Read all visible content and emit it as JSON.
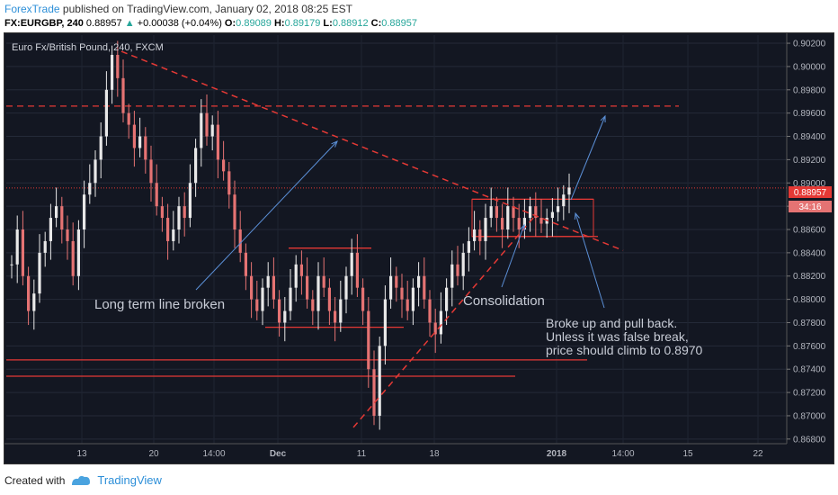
{
  "header": {
    "author": "ForexTrade",
    "published": "published on TradingView.com, January 02, 2018 08:25 EST",
    "symbol": "FX:EURGBP, 240",
    "last": "0.88957",
    "arrow": "▲",
    "change": "+0.00038 (+0.04%)",
    "o_label": "O:",
    "o_val": "0.89089",
    "h_label": "H:",
    "h_val": "0.89179",
    "l_label": "L:",
    "l_val": "0.88912",
    "c_label": "C:",
    "c_val": "0.88957"
  },
  "chart_data": {
    "type": "candlestick",
    "title": "Euro Fx/British Pound, 240, FXCM",
    "y_axis_ticks": [
      "0.90200",
      "0.90000",
      "0.89800",
      "0.89600",
      "0.89400",
      "0.89200",
      "0.89000",
      "0.88800",
      "0.88600",
      "0.88400",
      "0.88200",
      "0.88000",
      "0.87800",
      "0.87600",
      "0.87400",
      "0.87200",
      "0.87000",
      "0.86800"
    ],
    "ylim": [
      0.8676,
      0.9027
    ],
    "x_axis_ticks": [
      "13",
      "20",
      "14:00",
      "Dec",
      "11",
      "18",
      "2018",
      "14:00",
      "15",
      "22"
    ],
    "current_price_label": "0.88957",
    "timer_label": "34:16",
    "close_series": [
      0.883,
      0.886,
      0.882,
      0.879,
      0.8805,
      0.884,
      0.885,
      0.887,
      0.888,
      0.886,
      0.885,
      0.882,
      0.886,
      0.889,
      0.89,
      0.892,
      0.894,
      0.898,
      0.901,
      0.899,
      0.896,
      0.895,
      0.893,
      0.894,
      0.892,
      0.89,
      0.888,
      0.887,
      0.885,
      0.886,
      0.888,
      0.887,
      0.89,
      0.893,
      0.896,
      0.894,
      0.895,
      0.892,
      0.891,
      0.889,
      0.886,
      0.884,
      0.882,
      0.88,
      0.879,
      0.881,
      0.882,
      0.88,
      0.878,
      0.879,
      0.881,
      0.883,
      0.882,
      0.88,
      0.879,
      0.882,
      0.881,
      0.879,
      0.878,
      0.88,
      0.882,
      0.884,
      0.881,
      0.879,
      0.874,
      0.87,
      0.876,
      0.88,
      0.882,
      0.881,
      0.88,
      0.879,
      0.881,
      0.882,
      0.88,
      0.878,
      0.877,
      0.879,
      0.881,
      0.883,
      0.882,
      0.884,
      0.885,
      0.886,
      0.885,
      0.887,
      0.888,
      0.887,
      0.886,
      0.888,
      0.887,
      0.886,
      0.887,
      0.888,
      0.887,
      0.8865,
      0.887,
      0.8875,
      0.888,
      0.889,
      0.8896
    ],
    "horizontal_levels": [
      0.8966,
      0.8886,
      0.8854,
      0.8844,
      0.8776,
      0.8748,
      0.8734
    ],
    "annotations": [
      {
        "text": "Long term line broken"
      },
      {
        "text": "Consolidation"
      },
      {
        "lines": [
          "Broke up and pull back.",
          "Unless it was false break,",
          "price should climb to 0.8970"
        ]
      }
    ],
    "grid": true
  },
  "footer": {
    "created": "Created with",
    "brand": "TradingView"
  }
}
